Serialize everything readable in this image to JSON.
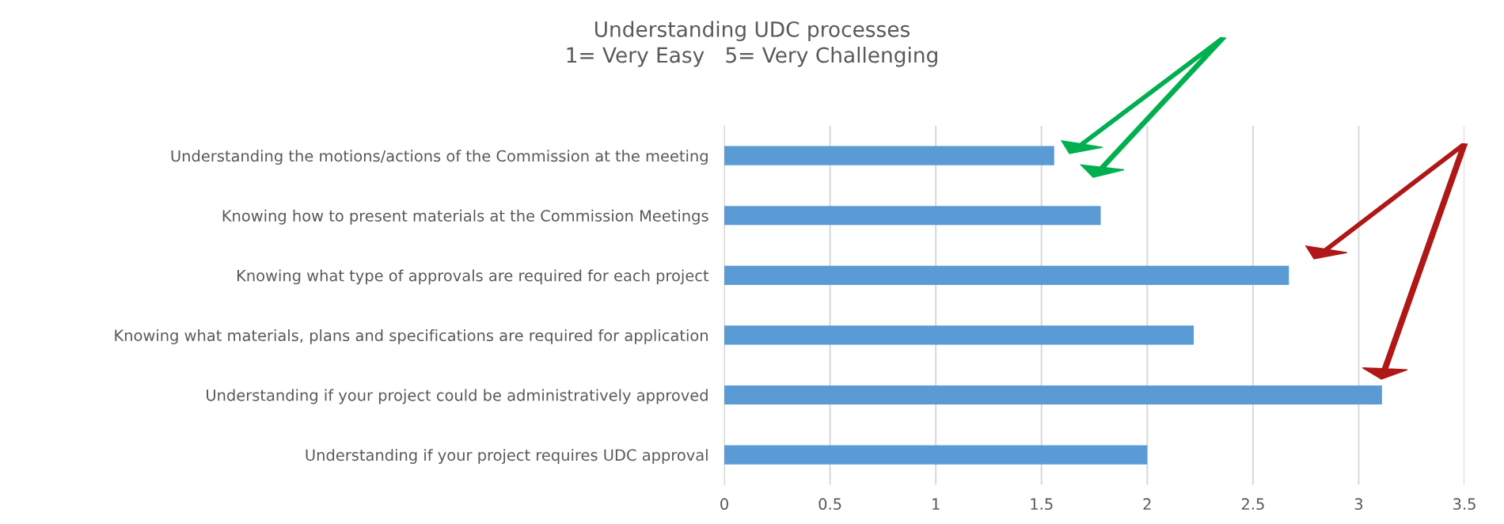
{
  "chart_data": {
    "type": "bar",
    "orientation": "horizontal",
    "title": "Understanding UDC processes\n1= Very Easy   5= Very Challenging",
    "categories": [
      "Understanding the motions/actions of the Commission at the meeting",
      "Knowing how to present materials at the Commission Meetings",
      "Knowing what type of approvals are required for each project",
      "Knowing what materials, plans and specifications are required for application",
      "Understanding if your project could be administratively approved",
      "Understanding if your project requires UDC approval"
    ],
    "values": [
      1.56,
      1.78,
      2.67,
      2.22,
      3.11,
      2.0
    ],
    "color": "#5b9bd5",
    "xlim": [
      0,
      3.5
    ],
    "xticks": [
      0,
      0.5,
      1,
      1.5,
      2,
      2.5,
      3,
      3.5
    ],
    "grid": "x"
  }
}
